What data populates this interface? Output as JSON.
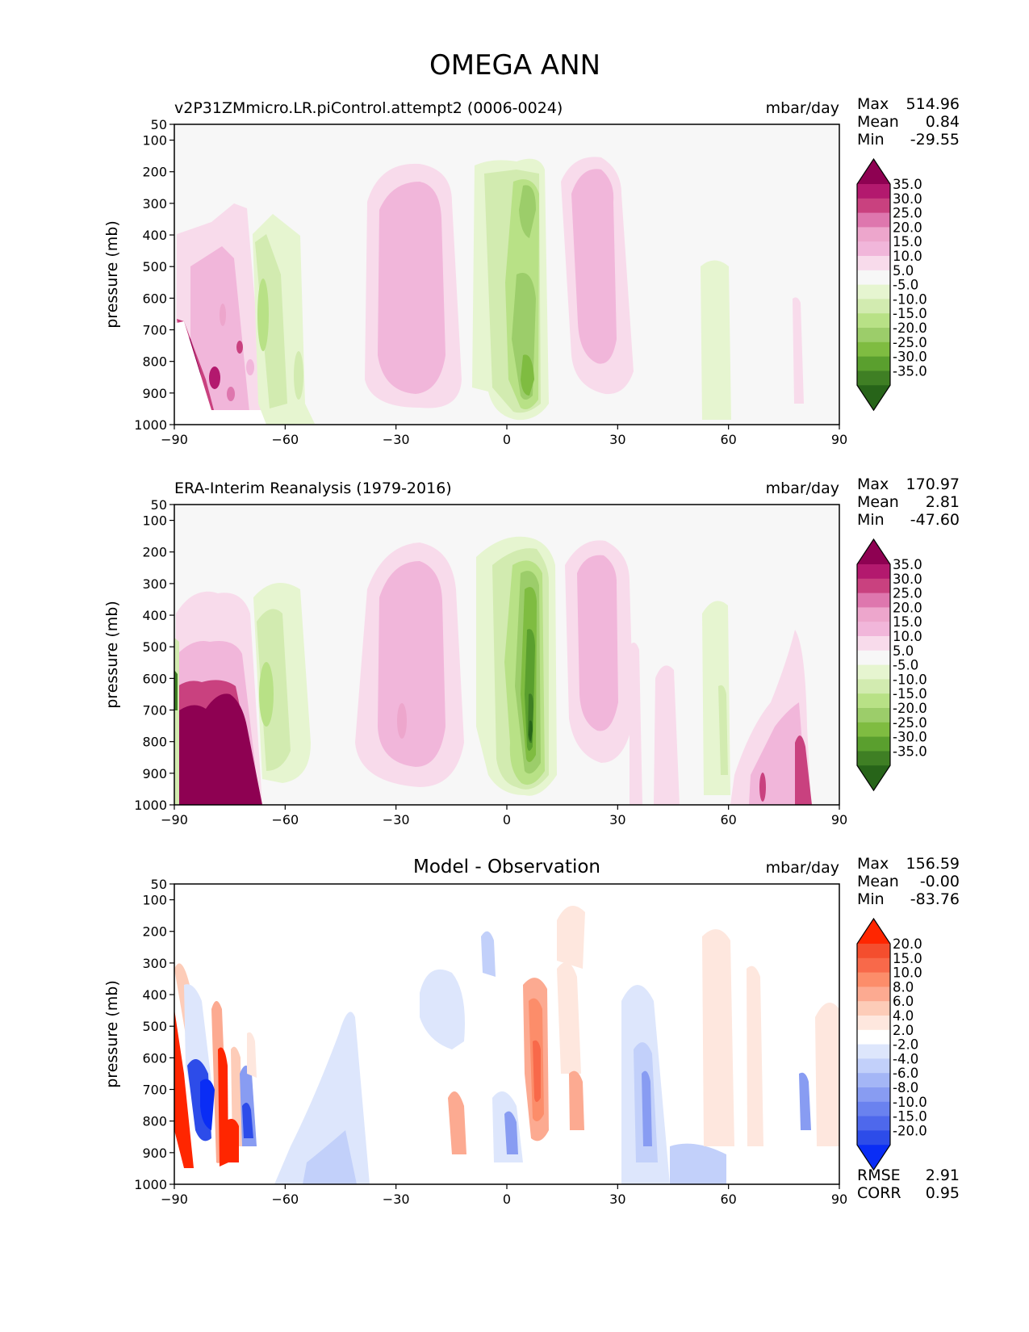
{
  "figure": {
    "title": "OMEGA ANN"
  },
  "chart_data": [
    {
      "type": "heatmap",
      "panel": "model",
      "title": "v2P31ZMmicro.LR.piControl.attempt2 (0006-0024)",
      "units": "mbar/day",
      "ylabel": "pressure (mb)",
      "xlabel": "",
      "xlim": [
        -90,
        90
      ],
      "ylim": [
        1000,
        50
      ],
      "xticks": [
        "−90",
        "−60",
        "−30",
        "0",
        "30",
        "60",
        "90"
      ],
      "yticks": [
        "50",
        "100",
        "200",
        "300",
        "400",
        "500",
        "600",
        "700",
        "800",
        "900",
        "1000"
      ],
      "stats": [
        {
          "label": "Max",
          "value": "514.96"
        },
        {
          "label": "Mean",
          "value": "0.84"
        },
        {
          "label": "Min",
          "value": "-29.55"
        }
      ],
      "colorbar": {
        "levels": [
          "35.0",
          "30.0",
          "25.0",
          "20.0",
          "15.0",
          "10.0",
          "5.0",
          "-5.0",
          "-10.0",
          "-15.0",
          "-20.0",
          "-25.0",
          "-30.0",
          "-35.0"
        ],
        "colors": [
          "#8e0152",
          "#b3196e",
          "#c9417f",
          "#de77ae",
          "#eda6cc",
          "#f1b6da",
          "#f8dbeb",
          "#f7f7f7",
          "#e6f5d0",
          "#d2ebb0",
          "#b8e186",
          "#9ccd6a",
          "#7fbc41",
          "#5a9f2e",
          "#3f7f24",
          "#276419"
        ]
      },
      "features": [
        {
          "name": "antarctic-descent",
          "lat": [
            -88,
            -72
          ],
          "p": [
            700,
            960
          ],
          "value": 35
        },
        {
          "name": "southern-subtropical-descent",
          "lat": [
            -50,
            -20
          ],
          "p": [
            200,
            920
          ],
          "value": 12
        },
        {
          "name": "itcz-ascent",
          "lat": [
            0,
            12
          ],
          "p": [
            180,
            990
          ],
          "value": -35
        },
        {
          "name": "northern-subtropical-descent",
          "lat": [
            18,
            34
          ],
          "p": [
            170,
            900
          ],
          "value": 12
        },
        {
          "name": "storm-track-ascent",
          "lat": [
            -68,
            -58
          ],
          "p": [
            300,
            960
          ],
          "value": -18
        }
      ]
    },
    {
      "type": "heatmap",
      "panel": "observation",
      "title": "ERA-Interim Reanalysis (1979-2016)",
      "units": "mbar/day",
      "ylabel": "pressure (mb)",
      "xlabel": "",
      "xlim": [
        -90,
        90
      ],
      "ylim": [
        1000,
        50
      ],
      "xticks": [
        "−90",
        "−60",
        "−30",
        "0",
        "30",
        "60",
        "90"
      ],
      "yticks": [
        "50",
        "100",
        "200",
        "300",
        "400",
        "500",
        "600",
        "700",
        "800",
        "900",
        "1000"
      ],
      "stats": [
        {
          "label": "Max",
          "value": "170.97"
        },
        {
          "label": "Mean",
          "value": "2.81"
        },
        {
          "label": "Min",
          "value": "-47.60"
        }
      ],
      "colorbar": {
        "levels": [
          "35.0",
          "30.0",
          "25.0",
          "20.0",
          "15.0",
          "10.0",
          "5.0",
          "-5.0",
          "-10.0",
          "-15.0",
          "-20.0",
          "-25.0",
          "-30.0",
          "-35.0"
        ],
        "colors": [
          "#8e0152",
          "#b3196e",
          "#c9417f",
          "#de77ae",
          "#eda6cc",
          "#f1b6da",
          "#f8dbeb",
          "#f7f7f7",
          "#e6f5d0",
          "#d2ebb0",
          "#b8e186",
          "#9ccd6a",
          "#7fbc41",
          "#5a9f2e",
          "#3f7f24",
          "#276419"
        ]
      },
      "features": [
        {
          "name": "antarctic-descent",
          "lat": [
            -88,
            -66
          ],
          "p": [
            700,
            1000
          ],
          "value": 40
        },
        {
          "name": "southern-subtropical-descent",
          "lat": [
            -50,
            -18
          ],
          "p": [
            200,
            940
          ],
          "value": 15
        },
        {
          "name": "itcz-ascent",
          "lat": [
            2,
            12
          ],
          "p": [
            170,
            990
          ],
          "value": -40
        },
        {
          "name": "northern-subtropical-descent",
          "lat": [
            18,
            33
          ],
          "p": [
            170,
            900
          ],
          "value": 14
        },
        {
          "name": "arctic-descent",
          "lat": [
            66,
            82
          ],
          "p": [
            800,
            1000
          ],
          "value": 20
        }
      ]
    },
    {
      "type": "heatmap",
      "panel": "difference",
      "title": "Model - Observation",
      "units": "mbar/day",
      "ylabel": "pressure (mb)",
      "xlabel": "",
      "xlim": [
        -90,
        90
      ],
      "ylim": [
        1000,
        50
      ],
      "xticks": [
        "−90",
        "−60",
        "−30",
        "0",
        "30",
        "60",
        "90"
      ],
      "yticks": [
        "50",
        "100",
        "200",
        "300",
        "400",
        "500",
        "600",
        "700",
        "800",
        "900",
        "1000"
      ],
      "stats": [
        {
          "label": "Max",
          "value": "156.59"
        },
        {
          "label": "Mean",
          "value": "-0.00"
        },
        {
          "label": "Min",
          "value": "-83.76"
        }
      ],
      "metrics": [
        {
          "label": "RMSE",
          "value": "2.91"
        },
        {
          "label": "CORR",
          "value": "0.95"
        }
      ],
      "colorbar": {
        "levels": [
          "20.0",
          "15.0",
          "10.0",
          "8.0",
          "6.0",
          "4.0",
          "2.0",
          "-2.0",
          "-4.0",
          "-6.0",
          "-8.0",
          "-10.0",
          "-15.0",
          "-20.0"
        ],
        "colors": [
          "#ff2600",
          "#f44e2e",
          "#f8694a",
          "#fc8d6a",
          "#fcaa91",
          "#fdccb8",
          "#fee7de",
          "#ffffff",
          "#dde6fc",
          "#c2d0fa",
          "#a4b6f6",
          "#889cf2",
          "#6a82ef",
          "#4e68ec",
          "#2d4ce9",
          "#0a2df5"
        ]
      },
      "features": [
        {
          "name": "antarctic-mixed",
          "lat": [
            -88,
            -66
          ],
          "p": [
            650,
            950
          ],
          "value": 20
        },
        {
          "name": "itcz-positive-bias",
          "lat": [
            4,
            10
          ],
          "p": [
            300,
            850
          ],
          "value": 8
        },
        {
          "name": "equatorial-negative-bias",
          "lat": [
            -2,
            2
          ],
          "p": [
            650,
            900
          ],
          "value": -8
        },
        {
          "name": "southern-negative-bias",
          "lat": [
            -48,
            -36
          ],
          "p": [
            500,
            1000
          ],
          "value": -4
        },
        {
          "name": "midlatitude-negative-bias",
          "lat": [
            32,
            52
          ],
          "p": [
            400,
            1000
          ],
          "value": -6
        }
      ]
    }
  ]
}
